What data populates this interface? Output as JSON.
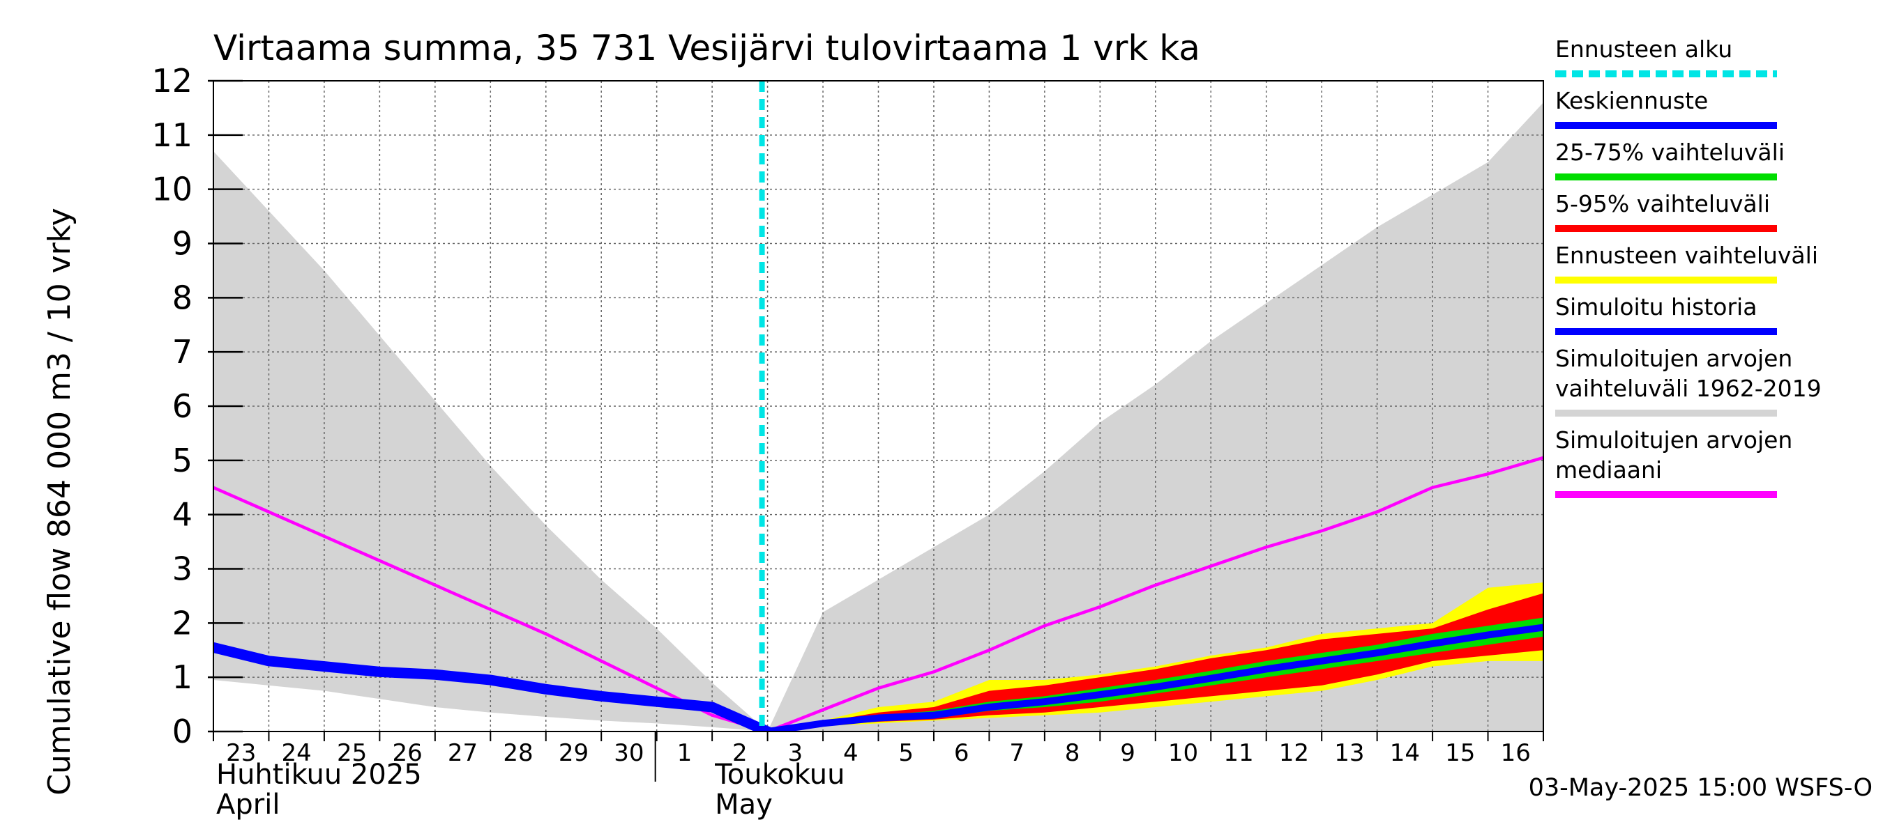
{
  "chart_data": {
    "type": "area",
    "title": "Virtaama summa, 35 731 Vesijärvi tulovirtaama 1 vrk ka",
    "ylabel": "Cumulative flow     864 000 m3 / 10 vrky",
    "ylim": [
      0,
      12
    ],
    "xlim": [
      0,
      24
    ],
    "yticks": [
      0,
      1,
      2,
      3,
      4,
      5,
      6,
      7,
      8,
      9,
      10,
      11,
      12
    ],
    "day_labels": [
      "23",
      "24",
      "25",
      "26",
      "27",
      "28",
      "29",
      "30",
      "1",
      "2",
      "3",
      "4",
      "5",
      "6",
      "7",
      "8",
      "9",
      "10",
      "11",
      "12",
      "13",
      "14",
      "15",
      "16"
    ],
    "month_labels": [
      {
        "line1": "Huhtikuu  2025",
        "line2": "April",
        "x": 0
      },
      {
        "line1": "Toukokuu",
        "line2": "May",
        "x": 9
      }
    ],
    "month_separator_x": 8,
    "forecast_start_x": 10,
    "footer": "03-May-2025 15:00 WSFS-O",
    "colors": {
      "forecast_start": "#00e5e5",
      "mean_forecast": "#0000ff",
      "p25_75": "#00dd00",
      "p5_95": "#ff0000",
      "forecast_range": "#ffff00",
      "simulated_history": "#0000ff",
      "historical_range": "#d4d4d4",
      "historical_median": "#ff00ff",
      "grid": "#666666"
    },
    "legend": [
      {
        "key": "forecast_start",
        "label": "Ennusteen alku",
        "style": "dashed"
      },
      {
        "key": "mean_forecast",
        "label": "Keskiennuste",
        "style": "solid"
      },
      {
        "key": "p25_75",
        "label": "25-75% vaihteluväli",
        "style": "solid"
      },
      {
        "key": "p5_95",
        "label": "5-95% vaihteluväli",
        "style": "solid"
      },
      {
        "key": "forecast_range",
        "label": "Ennusteen vaihteluväli",
        "style": "solid"
      },
      {
        "key": "simulated_history",
        "label": "Simuloitu historia",
        "style": "solid"
      },
      {
        "key": "historical_range",
        "label": "Simuloitujen arvojen vaihteluväli 1962-2019",
        "line1": "Simuloitujen arvojen",
        "line2": "vaihteluväli 1962-2019",
        "style": "solid"
      },
      {
        "key": "historical_median",
        "label": "Simuloitujen arvojen mediaani",
        "line1": "Simuloitujen arvojen",
        "line2": "mediaani",
        "style": "solid"
      }
    ],
    "historical_range": {
      "x": [
        0,
        1,
        2,
        3,
        4,
        5,
        6,
        7,
        8,
        9,
        10,
        11,
        12,
        13,
        14,
        15,
        16,
        17,
        18,
        19,
        20,
        21,
        22,
        23,
        24
      ],
      "upper": [
        10.7,
        9.6,
        8.5,
        7.3,
        6.1,
        4.9,
        3.8,
        2.8,
        1.9,
        0.9,
        0.0,
        2.2,
        2.8,
        3.4,
        4.0,
        4.8,
        5.7,
        6.4,
        7.2,
        7.9,
        8.6,
        9.3,
        9.9,
        10.5,
        11.6
      ],
      "lower": [
        0.95,
        0.85,
        0.75,
        0.6,
        0.45,
        0.35,
        0.27,
        0.2,
        0.15,
        0.08,
        0.0,
        0.0,
        0.0,
        0.0,
        0.0,
        0.0,
        0.0,
        0.0,
        0.0,
        0.0,
        0.0,
        0.0,
        0.0,
        0.0,
        0.0
      ]
    },
    "historical_median": {
      "x": [
        0,
        1,
        2,
        3,
        4,
        5,
        6,
        7,
        8,
        9,
        10,
        11,
        12,
        13,
        14,
        15,
        16,
        17,
        18,
        19,
        20,
        21,
        22,
        23,
        24
      ],
      "y": [
        4.5,
        4.05,
        3.6,
        3.15,
        2.7,
        2.25,
        1.8,
        1.3,
        0.8,
        0.3,
        0.0,
        0.4,
        0.8,
        1.1,
        1.5,
        1.95,
        2.3,
        2.7,
        3.05,
        3.4,
        3.7,
        4.05,
        4.5,
        4.75,
        5.05
      ]
    },
    "simulated_history": {
      "x": [
        0,
        1,
        2,
        3,
        4,
        5,
        6,
        7,
        8,
        9,
        10
      ],
      "y": [
        1.55,
        1.3,
        1.2,
        1.1,
        1.05,
        0.95,
        0.78,
        0.65,
        0.55,
        0.45,
        0.0
      ]
    },
    "forecast_range": {
      "x": [
        10,
        11,
        12,
        13,
        14,
        15,
        16,
        17,
        18,
        19,
        20,
        21,
        22,
        23,
        24
      ],
      "upper": [
        0.0,
        0.2,
        0.45,
        0.55,
        0.95,
        0.95,
        1.05,
        1.2,
        1.4,
        1.55,
        1.8,
        1.9,
        2.0,
        2.65,
        2.75
      ],
      "lower": [
        0.0,
        0.1,
        0.15,
        0.2,
        0.25,
        0.3,
        0.35,
        0.45,
        0.55,
        0.65,
        0.75,
        0.95,
        1.2,
        1.3,
        1.3
      ]
    },
    "p5_95": {
      "x": [
        10,
        11,
        12,
        13,
        14,
        15,
        16,
        17,
        18,
        19,
        20,
        21,
        22,
        23,
        24
      ],
      "upper": [
        0.0,
        0.18,
        0.35,
        0.45,
        0.75,
        0.85,
        1.0,
        1.15,
        1.35,
        1.5,
        1.7,
        1.8,
        1.9,
        2.25,
        2.55
      ],
      "lower": [
        0.0,
        0.12,
        0.18,
        0.22,
        0.3,
        0.35,
        0.45,
        0.55,
        0.65,
        0.75,
        0.85,
        1.05,
        1.3,
        1.4,
        1.5
      ]
    },
    "p25_75": {
      "x": [
        10,
        11,
        12,
        13,
        14,
        15,
        16,
        17,
        18,
        19,
        20,
        21,
        22,
        23,
        24
      ],
      "upper": [
        0.0,
        0.17,
        0.3,
        0.38,
        0.55,
        0.65,
        0.8,
        0.95,
        1.12,
        1.3,
        1.45,
        1.6,
        1.8,
        1.95,
        2.1
      ],
      "lower": [
        0.0,
        0.13,
        0.2,
        0.25,
        0.38,
        0.45,
        0.55,
        0.7,
        0.85,
        1.0,
        1.15,
        1.3,
        1.45,
        1.6,
        1.75
      ]
    },
    "mean_forecast": {
      "x": [
        10,
        11,
        12,
        13,
        14,
        15,
        16,
        17,
        18,
        19,
        20,
        21,
        22,
        23,
        24
      ],
      "y": [
        0.0,
        0.15,
        0.25,
        0.3,
        0.45,
        0.55,
        0.68,
        0.82,
        0.98,
        1.15,
        1.3,
        1.45,
        1.62,
        1.78,
        1.92
      ]
    }
  }
}
